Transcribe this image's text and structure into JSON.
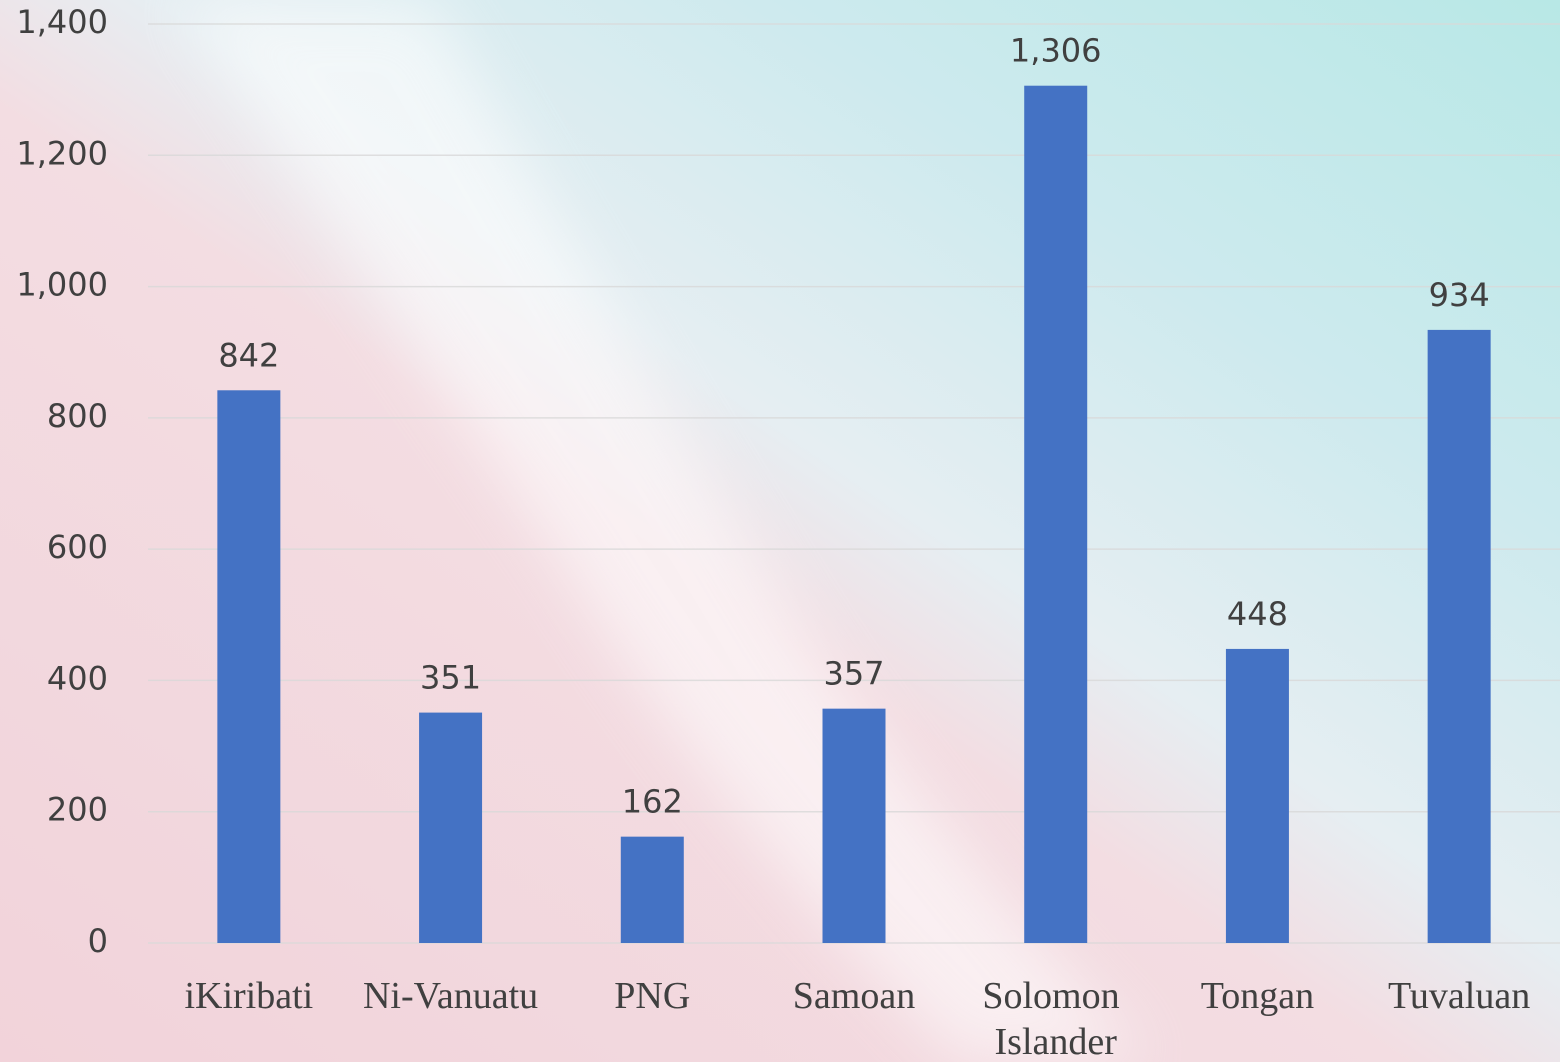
{
  "chart_data": {
    "type": "bar",
    "categories": [
      "iKiribati",
      "Ni-Vanuatu",
      "PNG",
      "Samoan",
      "Solomon Islander",
      "Tongan",
      "Tuvaluan"
    ],
    "values": [
      842,
      351,
      162,
      357,
      1306,
      448,
      934
    ],
    "value_labels": [
      "842",
      "351",
      "162",
      "357",
      "1,306",
      "448",
      "934"
    ],
    "color": "#4472c4",
    "ylim": [
      0,
      1400
    ],
    "yticks": [
      0,
      200,
      400,
      600,
      800,
      {
        "value": 1000,
        "label": "1,000"
      },
      {
        "value": 1200,
        "label": "1,200"
      },
      {
        "value": 1400,
        "label": "1,400"
      }
    ],
    "grid": true
  }
}
